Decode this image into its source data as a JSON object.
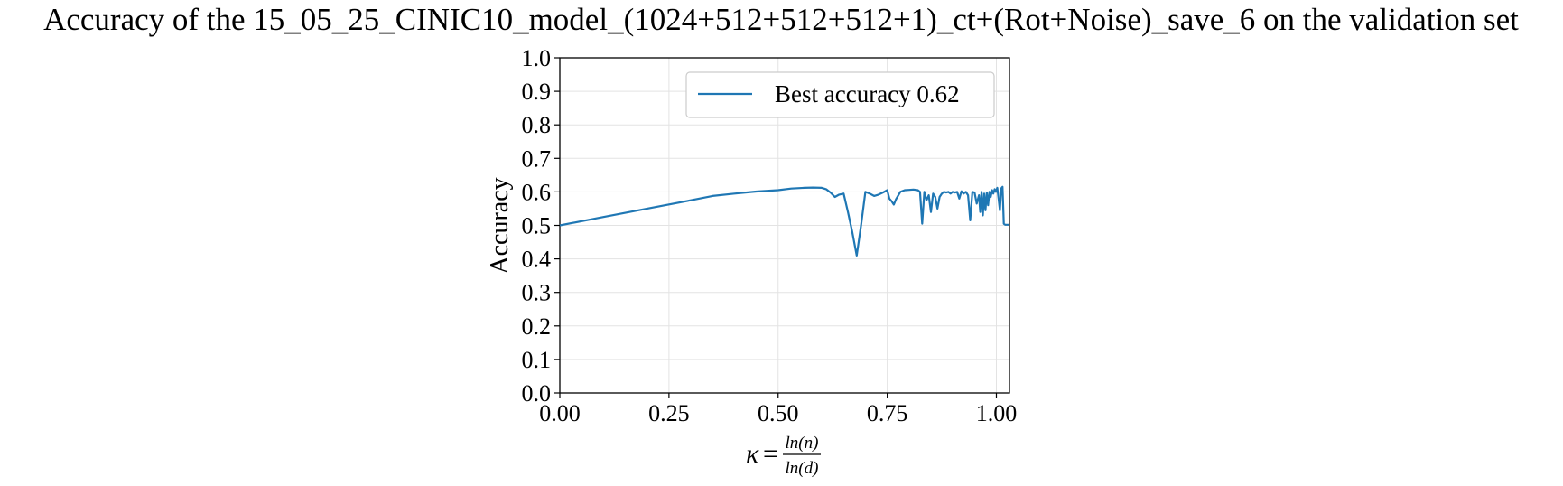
{
  "chart_data": {
    "type": "line",
    "title": "Accuracy of the 15_05_25_CINIC10_model_(1024+512+512+512+1)_ct+(Rot+Noise)_save_6 on the validation set",
    "xlabel": {
      "symbol": "κ",
      "equals": "=",
      "numerator": "ln(n)",
      "denominator": "ln(d)"
    },
    "ylabel": "Accuracy",
    "xlim": [
      0.0,
      1.03
    ],
    "ylim": [
      0.0,
      1.0
    ],
    "x_ticks": [
      "0.00",
      "0.25",
      "0.50",
      "0.75",
      "1.00"
    ],
    "y_ticks": [
      "0.0",
      "0.1",
      "0.2",
      "0.3",
      "0.4",
      "0.5",
      "0.6",
      "0.7",
      "0.8",
      "0.9",
      "1.0"
    ],
    "grid": true,
    "legend_position": "top-right",
    "series": [
      {
        "name": "Best accuracy 0.62",
        "color": "#1f77b4",
        "x": [
          0.0,
          0.1,
          0.2,
          0.3,
          0.35,
          0.4,
          0.45,
          0.5,
          0.53,
          0.56,
          0.58,
          0.6,
          0.61,
          0.62,
          0.63,
          0.64,
          0.65,
          0.66,
          0.67,
          0.68,
          0.69,
          0.7,
          0.71,
          0.72,
          0.73,
          0.74,
          0.75,
          0.755,
          0.76,
          0.765,
          0.77,
          0.78,
          0.79,
          0.8,
          0.81,
          0.82,
          0.825,
          0.83,
          0.835,
          0.84,
          0.845,
          0.85,
          0.855,
          0.86,
          0.865,
          0.87,
          0.875,
          0.88,
          0.885,
          0.89,
          0.895,
          0.9,
          0.905,
          0.91,
          0.915,
          0.92,
          0.925,
          0.93,
          0.935,
          0.94,
          0.945,
          0.95,
          0.955,
          0.96,
          0.963,
          0.966,
          0.969,
          0.972,
          0.975,
          0.978,
          0.981,
          0.984,
          0.987,
          0.99,
          0.993,
          0.996,
          0.999,
          1.002,
          1.005,
          1.008,
          1.011,
          1.014,
          1.017,
          1.02,
          1.023,
          1.026,
          1.03
        ],
        "y": [
          0.5,
          0.525,
          0.55,
          0.575,
          0.588,
          0.595,
          0.601,
          0.605,
          0.61,
          0.612,
          0.613,
          0.612,
          0.608,
          0.598,
          0.585,
          0.592,
          0.595,
          0.54,
          0.48,
          0.41,
          0.5,
          0.6,
          0.595,
          0.588,
          0.592,
          0.598,
          0.605,
          0.58,
          0.572,
          0.562,
          0.578,
          0.6,
          0.605,
          0.606,
          0.607,
          0.605,
          0.6,
          0.505,
          0.6,
          0.575,
          0.59,
          0.54,
          0.595,
          0.585,
          0.55,
          0.585,
          0.595,
          0.6,
          0.598,
          0.6,
          0.595,
          0.6,
          0.598,
          0.6,
          0.58,
          0.602,
          0.595,
          0.6,
          0.59,
          0.515,
          0.6,
          0.598,
          0.565,
          0.59,
          0.54,
          0.6,
          0.53,
          0.595,
          0.545,
          0.598,
          0.56,
          0.6,
          0.585,
          0.605,
          0.595,
          0.608,
          0.6,
          0.612,
          0.58,
          0.545,
          0.61,
          0.615,
          0.505,
          0.502,
          0.502,
          0.502,
          0.502
        ]
      }
    ]
  }
}
